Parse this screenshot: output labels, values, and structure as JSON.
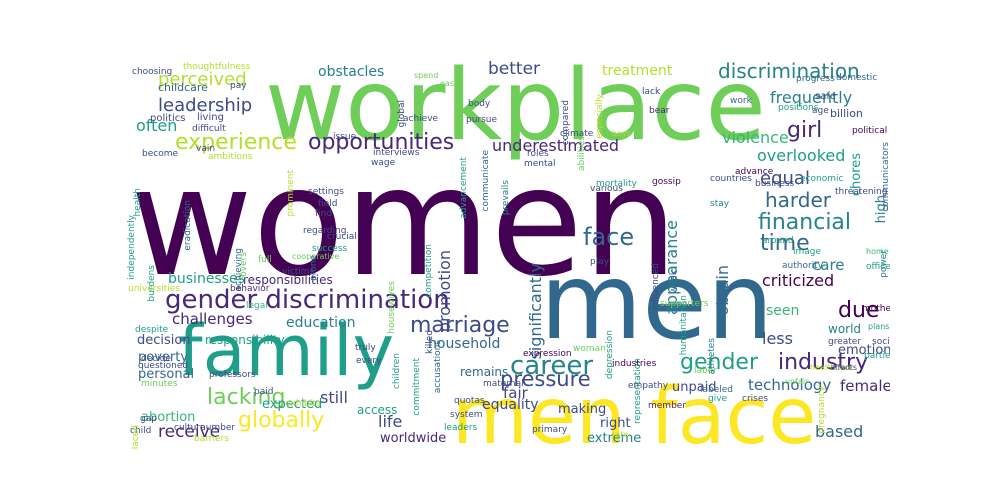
{
  "palette": {
    "p1": "#440154",
    "p2": "#482878",
    "p3": "#3e4a89",
    "p4": "#31688e",
    "p5": "#26828e",
    "p6": "#1f9e89",
    "p7": "#35b779",
    "p8": "#6ece58",
    "p9": "#b5de2b",
    "p10": "#fde725"
  },
  "words": [
    {
      "text": "women",
      "color": "p1"
    },
    {
      "text": "workplace",
      "color": "p8"
    },
    {
      "text": "men",
      "color": "p4"
    },
    {
      "text": "men face",
      "color": "p10"
    },
    {
      "text": "family",
      "color": "p6"
    },
    {
      "text": "gender discrimination",
      "color": "p2"
    },
    {
      "text": "experience",
      "color": "p9"
    },
    {
      "text": "opportunities",
      "color": "p2"
    },
    {
      "text": "discrimination",
      "color": "p5"
    },
    {
      "text": "girl",
      "color": "p2"
    },
    {
      "text": "career",
      "color": "p5"
    },
    {
      "text": "marriage",
      "color": "p3"
    },
    {
      "text": "face",
      "color": "p4"
    },
    {
      "text": "globally",
      "color": "p10"
    },
    {
      "text": "pressure",
      "color": "p3"
    },
    {
      "text": "gender",
      "color": "p6"
    },
    {
      "text": "industry",
      "color": "p2"
    },
    {
      "text": "financial",
      "color": "p5"
    },
    {
      "text": "harder",
      "color": "p4"
    },
    {
      "text": "lacking",
      "color": "p8"
    },
    {
      "text": "time",
      "color": "p4"
    },
    {
      "text": "leadership",
      "color": "p3"
    },
    {
      "text": "perceived",
      "color": "p9"
    },
    {
      "text": "obstacles",
      "color": "p5"
    },
    {
      "text": "better",
      "color": "p3"
    },
    {
      "text": "treatment",
      "color": "p9"
    },
    {
      "text": "frequently",
      "color": "p5"
    },
    {
      "text": "violence",
      "color": "p7"
    },
    {
      "text": "overlooked",
      "color": "p6"
    },
    {
      "text": "underestimated",
      "color": "p2"
    },
    {
      "text": "equal",
      "color": "p3"
    },
    {
      "text": "due",
      "color": "p1"
    },
    {
      "text": "appearance",
      "color": "p5"
    },
    {
      "text": "promotion",
      "color": "p3"
    },
    {
      "text": "obtain",
      "color": "p4"
    },
    {
      "text": "significantly",
      "color": "p4"
    },
    {
      "text": "still",
      "color": "p3"
    },
    {
      "text": "receive",
      "color": "p2"
    },
    {
      "text": "businesses",
      "color": "p6"
    },
    {
      "text": "challenges",
      "color": "p2"
    },
    {
      "text": "education",
      "color": "p5"
    },
    {
      "text": "criticized",
      "color": "p1"
    },
    {
      "text": "technology",
      "color": "p4"
    },
    {
      "text": "female",
      "color": "p2"
    },
    {
      "text": "based",
      "color": "p4"
    },
    {
      "text": "less",
      "color": "p3"
    },
    {
      "text": "seen",
      "color": "p7"
    },
    {
      "text": "care",
      "color": "p5"
    },
    {
      "text": "often",
      "color": "p6"
    },
    {
      "text": "fair",
      "color": "p3"
    },
    {
      "text": "life",
      "color": "p3"
    },
    {
      "text": "equality",
      "color": "p3"
    },
    {
      "text": "household",
      "color": "p4"
    },
    {
      "text": "remains",
      "color": "p4"
    },
    {
      "text": "expected",
      "color": "p6"
    },
    {
      "text": "decision",
      "color": "p3"
    },
    {
      "text": "poverty",
      "color": "p4"
    },
    {
      "text": "personal",
      "color": "p4"
    },
    {
      "text": "responsibility",
      "color": "p6"
    },
    {
      "text": "responsibilities",
      "color": "p2"
    },
    {
      "text": "childcare",
      "color": "p4"
    },
    {
      "text": "politics",
      "color": "p3"
    },
    {
      "text": "living",
      "color": "p3"
    },
    {
      "text": "chores",
      "color": "p6"
    },
    {
      "text": "high",
      "color": "p5"
    },
    {
      "text": "making",
      "color": "p3"
    },
    {
      "text": "right",
      "color": "p3"
    },
    {
      "text": "extreme",
      "color": "p5"
    },
    {
      "text": "unpaid",
      "color": "p3"
    },
    {
      "text": "worldwide",
      "color": "p2"
    },
    {
      "text": "abortion",
      "color": "p7"
    },
    {
      "text": "access",
      "color": "p6"
    },
    {
      "text": "emotional",
      "color": "p3"
    },
    {
      "text": "world",
      "color": "p5"
    },
    {
      "text": "billion",
      "color": "p3"
    },
    {
      "text": "safe",
      "color": "p3"
    },
    {
      "text": "age",
      "color": "p3"
    },
    {
      "text": "positions",
      "color": "p6"
    },
    {
      "text": "progress",
      "color": "p4"
    },
    {
      "text": "domestic",
      "color": "p4"
    },
    {
      "text": "communicators",
      "color": "p4"
    },
    {
      "text": "work",
      "color": "p4"
    },
    {
      "text": "lack",
      "color": "p3"
    },
    {
      "text": "bear",
      "color": "p2"
    },
    {
      "text": "political",
      "color": "p1"
    },
    {
      "text": "advance",
      "color": "p1"
    },
    {
      "text": "countries",
      "color": "p3"
    },
    {
      "text": "business",
      "color": "p3"
    },
    {
      "text": "economic",
      "color": "p6"
    },
    {
      "text": "threatening",
      "color": "p3"
    },
    {
      "text": "stay",
      "color": "p5"
    },
    {
      "text": "gossip",
      "color": "p1"
    },
    {
      "text": "around",
      "color": "p6"
    },
    {
      "text": "image",
      "color": "p6"
    },
    {
      "text": "authority",
      "color": "p4"
    },
    {
      "text": "home",
      "color": "p7"
    },
    {
      "text": "office",
      "color": "p6"
    },
    {
      "text": "power",
      "color": "p5"
    },
    {
      "text": "mothers",
      "color": "p1"
    },
    {
      "text": "plans",
      "color": "p6"
    },
    {
      "text": "greater",
      "color": "p3"
    },
    {
      "text": "social",
      "color": "p3"
    },
    {
      "text": "parties",
      "color": "p6"
    },
    {
      "text": "healthcare",
      "color": "p9"
    },
    {
      "text": "affects",
      "color": "p3"
    },
    {
      "text": "pregnancy",
      "color": "p9"
    },
    {
      "text": "unfair",
      "color": "p8"
    },
    {
      "text": "labeled",
      "color": "p4"
    },
    {
      "text": "crises",
      "color": "p3"
    },
    {
      "text": "give",
      "color": "p6"
    },
    {
      "text": "labor",
      "color": "p8"
    },
    {
      "text": "athletes",
      "color": "p5"
    },
    {
      "text": "humanitarian",
      "color": "p6"
    },
    {
      "text": "influenced",
      "color": "p3"
    },
    {
      "text": "weak",
      "color": "p4"
    },
    {
      "text": "play",
      "color": "p3"
    },
    {
      "text": "woman",
      "color": "p8"
    },
    {
      "text": "mortality",
      "color": "p6"
    },
    {
      "text": "various",
      "color": "p3"
    },
    {
      "text": "climate",
      "color": "p3"
    },
    {
      "text": "mental",
      "color": "p3"
    },
    {
      "text": "roles",
      "color": "p3"
    },
    {
      "text": "advancement",
      "color": "p6"
    },
    {
      "text": "communicate",
      "color": "p4"
    },
    {
      "text": "prevails",
      "color": "p5"
    },
    {
      "text": "depression",
      "color": "p6"
    },
    {
      "text": "representation",
      "color": "p6"
    },
    {
      "text": "expression",
      "color": "p1"
    },
    {
      "text": "industries",
      "color": "p1"
    },
    {
      "text": "empathy",
      "color": "p3"
    },
    {
      "text": "member",
      "color": "p2"
    },
    {
      "text": "rate",
      "color": "p9"
    },
    {
      "text": "supporters",
      "color": "p8"
    },
    {
      "text": "compared",
      "color": "p3"
    },
    {
      "text": "abilities",
      "color": "p8"
    },
    {
      "text": "especially",
      "color": "p9"
    },
    {
      "text": "boys",
      "color": "p9"
    },
    {
      "text": "easy",
      "color": "p8"
    },
    {
      "text": "body",
      "color": "p3"
    },
    {
      "text": "achieve",
      "color": "p3"
    },
    {
      "text": "global",
      "color": "p3"
    },
    {
      "text": "pursue",
      "color": "p3"
    },
    {
      "text": "interviews",
      "color": "p3"
    },
    {
      "text": "wage",
      "color": "p3"
    },
    {
      "text": "issue",
      "color": "p3"
    },
    {
      "text": "spend",
      "color": "p8"
    },
    {
      "text": "cooperative",
      "color": "p8"
    },
    {
      "text": "prone",
      "color": "p4"
    },
    {
      "text": "accusations",
      "color": "p4"
    },
    {
      "text": "killed",
      "color": "p3"
    },
    {
      "text": "housewives",
      "color": "p8"
    },
    {
      "text": "competition",
      "color": "p6"
    },
    {
      "text": "field",
      "color": "p3"
    },
    {
      "text": "find",
      "color": "p3"
    },
    {
      "text": "regarding",
      "color": "p3"
    },
    {
      "text": "crucial",
      "color": "p3"
    },
    {
      "text": "success",
      "color": "p6"
    },
    {
      "text": "settings",
      "color": "p3"
    },
    {
      "text": "prominent",
      "color": "p9"
    },
    {
      "text": "achieving",
      "color": "p4"
    },
    {
      "text": "lovers",
      "color": "p8"
    },
    {
      "text": "victims",
      "color": "p3"
    },
    {
      "text": "full",
      "color": "p8"
    },
    {
      "text": "burdens",
      "color": "p6"
    },
    {
      "text": "independently",
      "color": "p6"
    },
    {
      "text": "eradication",
      "color": "p4"
    },
    {
      "text": "health",
      "color": "p6"
    },
    {
      "text": "universities",
      "color": "p9"
    },
    {
      "text": "behavior",
      "color": "p2"
    },
    {
      "text": "legal",
      "color": "p7"
    },
    {
      "text": "despite",
      "color": "p6"
    },
    {
      "text": "truly",
      "color": "p3"
    },
    {
      "text": "every",
      "color": "p3"
    },
    {
      "text": "children",
      "color": "p6"
    },
    {
      "text": "commitment",
      "color": "p6"
    },
    {
      "text": "maternal",
      "color": "p3"
    },
    {
      "text": "quotas",
      "color": "p3"
    },
    {
      "text": "system",
      "color": "p3"
    },
    {
      "text": "primary",
      "color": "p3"
    },
    {
      "text": "leaders",
      "color": "p6"
    },
    {
      "text": "decide",
      "color": "p3"
    },
    {
      "text": "questioned",
      "color": "p3"
    },
    {
      "text": "minutes",
      "color": "p8"
    },
    {
      "text": "professors",
      "color": "p3"
    },
    {
      "text": "paid",
      "color": "p3"
    },
    {
      "text": "exhibits",
      "color": "p9"
    },
    {
      "text": "gap",
      "color": "p3"
    },
    {
      "text": "child",
      "color": "p3"
    },
    {
      "text": "culture",
      "color": "p3"
    },
    {
      "text": "number",
      "color": "p3"
    },
    {
      "text": "barriers",
      "color": "p9"
    },
    {
      "text": "displaced",
      "color": "p9"
    },
    {
      "text": "choosing",
      "color": "p3"
    },
    {
      "text": "thoughtfulness",
      "color": "p9"
    },
    {
      "text": "pay",
      "color": "p3"
    },
    {
      "text": "difficult",
      "color": "p3"
    },
    {
      "text": "vain",
      "color": "p3"
    },
    {
      "text": "ambitions",
      "color": "p9"
    },
    {
      "text": "become",
      "color": "p3"
    }
  ]
}
